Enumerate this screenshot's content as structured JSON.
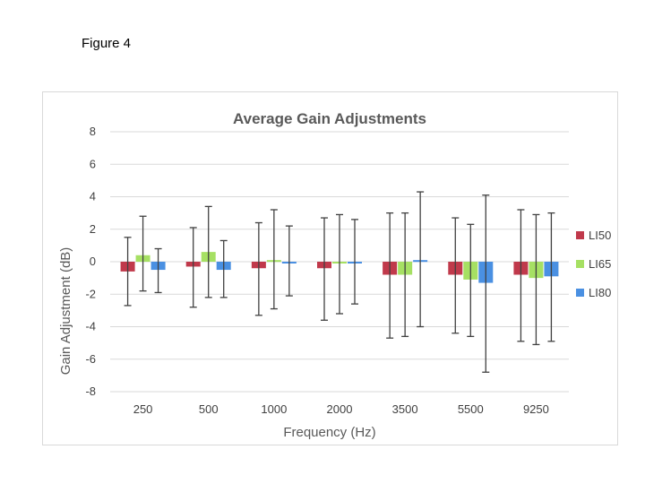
{
  "figure_label": "Figure 4",
  "chart_data": {
    "type": "bar",
    "title": "Average Gain Adjustments",
    "xlabel": "Frequency (Hz)",
    "ylabel": "Gain Adjustment (dB)",
    "ylim": [
      -8,
      8
    ],
    "yticks": [
      8,
      6,
      4,
      2,
      0,
      -2,
      -4,
      -6,
      -8
    ],
    "grid": true,
    "legend": "right",
    "categories": [
      "250",
      "500",
      "1000",
      "2000",
      "3500",
      "5500",
      "9250"
    ],
    "series": [
      {
        "name": "LI50",
        "color": "#c0394b",
        "values": [
          -0.6,
          -0.3,
          -0.4,
          -0.4,
          -0.8,
          -0.8,
          -0.8
        ],
        "error_low": [
          -2.7,
          -2.8,
          -3.3,
          -3.6,
          -4.7,
          -4.4,
          -4.9
        ],
        "error_high": [
          1.5,
          2.1,
          2.4,
          2.7,
          3.0,
          2.7,
          3.2
        ]
      },
      {
        "name": "LI65",
        "color": "#a6e063",
        "values": [
          0.4,
          0.6,
          0.1,
          -0.1,
          -0.8,
          -1.1,
          -1.0
        ],
        "error_low": [
          -1.8,
          -2.2,
          -2.9,
          -3.2,
          -4.6,
          -4.6,
          -5.1
        ],
        "error_high": [
          2.8,
          3.4,
          3.2,
          2.9,
          3.0,
          2.3,
          2.9
        ]
      },
      {
        "name": "LI80",
        "color": "#4a90e2",
        "values": [
          -0.5,
          -0.5,
          0.0,
          0.0,
          0.1,
          -1.3,
          -0.9
        ],
        "error_low": [
          -1.9,
          -2.2,
          -2.1,
          -2.6,
          -4.0,
          -6.8,
          -4.9
        ],
        "error_high": [
          0.8,
          1.3,
          2.2,
          2.6,
          4.3,
          4.1,
          3.0
        ]
      }
    ]
  }
}
